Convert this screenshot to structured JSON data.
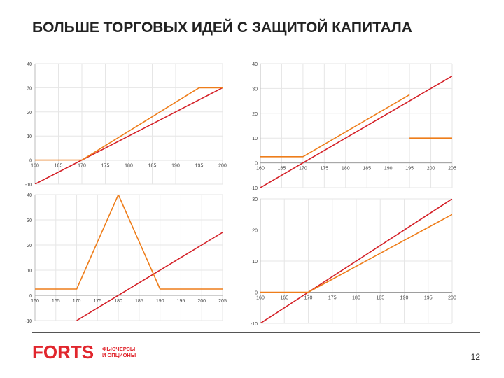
{
  "page": {
    "title": "БОЛЬШЕ ТОРГОВЫХ ИДЕЙ С ЗАЩИТОЙ КАПИТАЛА",
    "page_number": "12",
    "logo": {
      "brand": "FORTS",
      "tagline_line1": "ФЬЮЧЕРСЫ",
      "tagline_line2": "И ОПЦИОНЫ"
    }
  },
  "colors": {
    "underlying": "#d42027",
    "product": "#ee7d1a",
    "grid": "#e6e6e6",
    "axis_text": "#444444",
    "brand": "#e1262d"
  },
  "chart_data": [
    {
      "type": "line",
      "xlim": [
        160,
        200
      ],
      "ylim": [
        -10,
        40
      ],
      "xticks": [
        160,
        165,
        170,
        175,
        180,
        185,
        190,
        195,
        200
      ],
      "yticks": [
        -10,
        0,
        10,
        20,
        30,
        40
      ],
      "series": [
        {
          "color": "#d42027",
          "x": [
            160,
            200
          ],
          "y": [
            -10,
            30
          ]
        },
        {
          "color": "#ee7d1a",
          "x": [
            160,
            169,
            170,
            195,
            200
          ],
          "y": [
            0,
            0,
            0,
            30,
            30
          ]
        }
      ]
    },
    {
      "type": "line",
      "xlim": [
        160,
        205
      ],
      "ylim": [
        -10,
        40
      ],
      "xticks": [
        160,
        165,
        170,
        175,
        180,
        185,
        190,
        195,
        200,
        205
      ],
      "yticks": [
        -10,
        0,
        10,
        20,
        30,
        40
      ],
      "series": [
        {
          "color": "#d42027",
          "x": [
            160,
            205
          ],
          "y": [
            -10,
            35
          ]
        },
        {
          "color": "#ee7d1a",
          "x": [
            160,
            170,
            195
          ],
          "y": [
            2.5,
            2.5,
            27.5
          ]
        },
        {
          "color": "#ee7d1a",
          "x": [
            195,
            205
          ],
          "y": [
            10,
            10
          ]
        }
      ]
    },
    {
      "type": "line",
      "xlim": [
        160,
        205
      ],
      "ylim": [
        -10,
        40
      ],
      "xticks": [
        160,
        165,
        170,
        175,
        180,
        185,
        190,
        195,
        200,
        205
      ],
      "yticks": [
        -10,
        0,
        10,
        20,
        30,
        40
      ],
      "series": [
        {
          "color": "#d42027",
          "x": [
            170,
            205
          ],
          "y": [
            -10,
            25
          ]
        },
        {
          "color": "#ee7d1a",
          "x": [
            160,
            170,
            180,
            190,
            205
          ],
          "y": [
            2.5,
            2.5,
            40,
            2.5,
            2.5
          ]
        }
      ]
    },
    {
      "type": "line",
      "xlim": [
        160,
        200
      ],
      "ylim": [
        -10,
        30
      ],
      "xticks": [
        160,
        165,
        170,
        175,
        180,
        185,
        190,
        195,
        200
      ],
      "yticks": [
        -10,
        0,
        10,
        20,
        30
      ],
      "series": [
        {
          "color": "#d42027",
          "x": [
            160,
            200
          ],
          "y": [
            -10,
            30
          ]
        },
        {
          "color": "#ee7d1a",
          "x": [
            160,
            170,
            200
          ],
          "y": [
            0,
            0,
            25
          ]
        }
      ]
    }
  ]
}
